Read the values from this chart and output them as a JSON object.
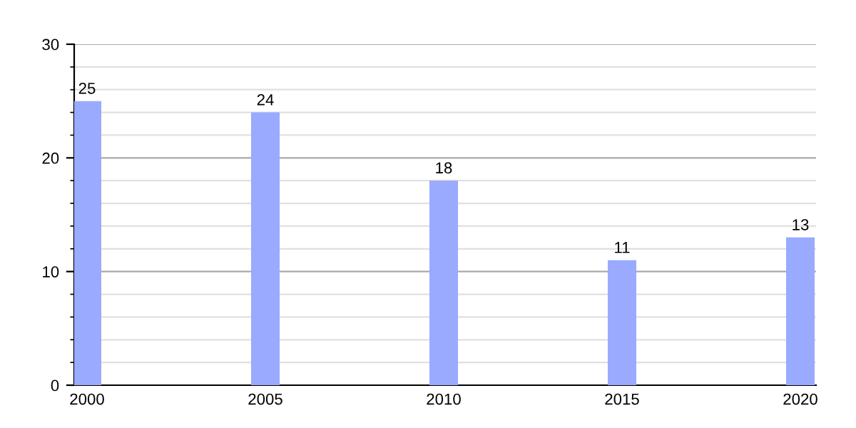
{
  "chart_data": {
    "type": "bar",
    "categories": [
      "2000",
      "2005",
      "2010",
      "2015",
      "2020"
    ],
    "values": [
      25,
      24,
      18,
      11,
      13
    ],
    "color": "#99aaff",
    "ylim": [
      0,
      30
    ],
    "yticks": [
      0,
      10,
      20,
      30
    ],
    "grid": "y",
    "data_labels": true
  }
}
